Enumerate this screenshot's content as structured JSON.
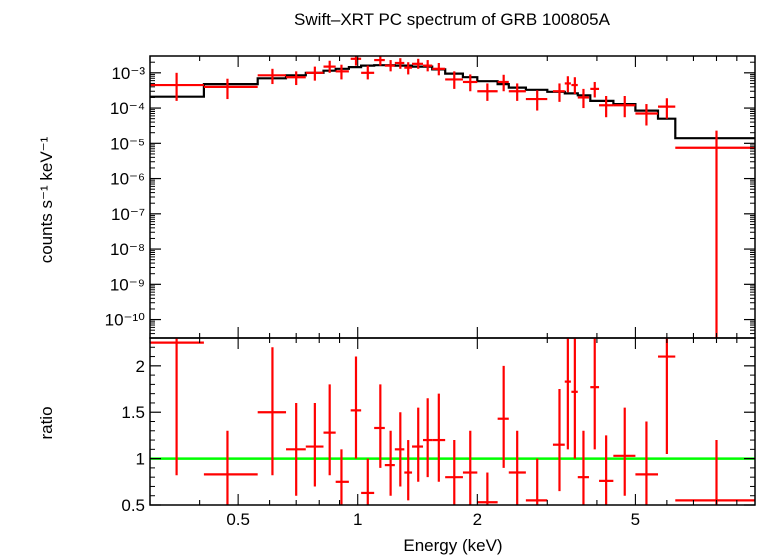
{
  "chart_data": {
    "type": "scatter",
    "title": "Swift–XRT PC spectrum of GRB 100805A",
    "xlabel": "Energy (keV)",
    "x_scale": "log",
    "xlim": [
      0.3,
      10
    ],
    "x_ticks": [
      {
        "value": 0.5,
        "label": "0.5"
      },
      {
        "value": 1,
        "label": "1"
      },
      {
        "value": 2,
        "label": "2"
      },
      {
        "value": 5,
        "label": "5"
      }
    ],
    "colors": {
      "data": "#ff0000",
      "model": "#000000",
      "unity": "#00ff00",
      "axes": "#000000"
    },
    "panels": [
      {
        "name": "spectrum",
        "ylabel": "counts s⁻¹ keV⁻¹",
        "y_scale": "log",
        "ylim": [
          3e-11,
          0.003
        ],
        "y_ticks": [
          {
            "value": 0.001,
            "label": "10⁻³"
          },
          {
            "value": 0.0001,
            "label": "10⁻⁴"
          },
          {
            "value": 1e-05,
            "label": "10⁻⁵"
          },
          {
            "value": 1e-06,
            "label": "10⁻⁶"
          },
          {
            "value": 1e-07,
            "label": "10⁻⁷"
          },
          {
            "value": 1e-08,
            "label": "10⁻⁸"
          },
          {
            "value": 1e-09,
            "label": "10⁻⁹"
          },
          {
            "value": 1e-10,
            "label": "10⁻¹⁰"
          }
        ],
        "data_points": [
          {
            "x": 0.35,
            "xlo": 0.3,
            "xhi": 0.41,
            "y": 0.00045,
            "ylo": 0.00016,
            "yhi": 0.001
          },
          {
            "x": 0.47,
            "xlo": 0.41,
            "xhi": 0.56,
            "y": 0.0004,
            "ylo": 0.00018,
            "yhi": 0.00068
          },
          {
            "x": 0.61,
            "xlo": 0.56,
            "xhi": 0.66,
            "y": 0.00085,
            "ylo": 0.00048,
            "yhi": 0.0013
          },
          {
            "x": 0.7,
            "xlo": 0.66,
            "xhi": 0.74,
            "y": 0.00075,
            "ylo": 0.00045,
            "yhi": 0.0011
          },
          {
            "x": 0.78,
            "xlo": 0.74,
            "xhi": 0.82,
            "y": 0.001,
            "ylo": 0.0006,
            "yhi": 0.0015
          },
          {
            "x": 0.85,
            "xlo": 0.82,
            "xhi": 0.88,
            "y": 0.0015,
            "ylo": 0.001,
            "yhi": 0.0022
          },
          {
            "x": 0.91,
            "xlo": 0.88,
            "xhi": 0.95,
            "y": 0.0011,
            "ylo": 0.00065,
            "yhi": 0.0017
          },
          {
            "x": 0.99,
            "xlo": 0.96,
            "xhi": 1.02,
            "y": 0.0025,
            "ylo": 0.0016,
            "yhi": 0.0032
          },
          {
            "x": 1.06,
            "xlo": 1.02,
            "xhi": 1.1,
            "y": 0.001,
            "ylo": 0.00065,
            "yhi": 0.0016
          },
          {
            "x": 1.14,
            "xlo": 1.1,
            "xhi": 1.17,
            "y": 0.0023,
            "ylo": 0.0016,
            "yhi": 0.003
          },
          {
            "x": 1.21,
            "xlo": 1.17,
            "xhi": 1.24,
            "y": 0.0016,
            "ylo": 0.0011,
            "yhi": 0.0023
          },
          {
            "x": 1.28,
            "xlo": 1.24,
            "xhi": 1.31,
            "y": 0.0019,
            "ylo": 0.0013,
            "yhi": 0.0026
          },
          {
            "x": 1.34,
            "xlo": 1.31,
            "xhi": 1.37,
            "y": 0.0014,
            "ylo": 0.0009,
            "yhi": 0.002
          },
          {
            "x": 1.42,
            "xlo": 1.37,
            "xhi": 1.46,
            "y": 0.0018,
            "ylo": 0.0013,
            "yhi": 0.0025
          },
          {
            "x": 1.5,
            "xlo": 1.46,
            "xhi": 1.54,
            "y": 0.0016,
            "ylo": 0.0011,
            "yhi": 0.0023
          },
          {
            "x": 1.6,
            "xlo": 1.54,
            "xhi": 1.66,
            "y": 0.0013,
            "ylo": 0.00085,
            "yhi": 0.0019
          },
          {
            "x": 1.75,
            "xlo": 1.66,
            "xhi": 1.84,
            "y": 0.00065,
            "ylo": 0.00035,
            "yhi": 0.0011
          },
          {
            "x": 1.92,
            "xlo": 1.84,
            "xhi": 2.0,
            "y": 0.00055,
            "ylo": 0.0003,
            "yhi": 0.0009
          },
          {
            "x": 2.12,
            "xlo": 2.0,
            "xhi": 2.25,
            "y": 0.0003,
            "ylo": 0.00016,
            "yhi": 0.0005
          },
          {
            "x": 2.33,
            "xlo": 2.25,
            "xhi": 2.4,
            "y": 0.00055,
            "ylo": 0.0003,
            "yhi": 0.00088
          },
          {
            "x": 2.52,
            "xlo": 2.4,
            "xhi": 2.65,
            "y": 0.0003,
            "ylo": 0.00016,
            "yhi": 0.0005
          },
          {
            "x": 2.83,
            "xlo": 2.65,
            "xhi": 3.0,
            "y": 0.00018,
            "ylo": 8.5e-05,
            "yhi": 0.00032
          },
          {
            "x": 3.22,
            "xlo": 3.1,
            "xhi": 3.32,
            "y": 0.0003,
            "ylo": 0.00015,
            "yhi": 0.0005
          },
          {
            "x": 3.38,
            "xlo": 3.32,
            "xhi": 3.44,
            "y": 0.0005,
            "ylo": 0.00028,
            "yhi": 0.0008
          },
          {
            "x": 3.52,
            "xlo": 3.45,
            "xhi": 3.58,
            "y": 0.00045,
            "ylo": 0.00025,
            "yhi": 0.00075
          },
          {
            "x": 3.7,
            "xlo": 3.58,
            "xhi": 3.82,
            "y": 0.0002,
            "ylo": 0.0001,
            "yhi": 0.00035
          },
          {
            "x": 3.95,
            "xlo": 3.85,
            "xhi": 4.05,
            "y": 0.00035,
            "ylo": 0.0002,
            "yhi": 0.00055
          },
          {
            "x": 4.22,
            "xlo": 4.05,
            "xhi": 4.4,
            "y": 0.00012,
            "ylo": 5.5e-05,
            "yhi": 0.00022
          },
          {
            "x": 4.7,
            "xlo": 4.4,
            "xhi": 5.0,
            "y": 0.00012,
            "ylo": 5.5e-05,
            "yhi": 0.00022
          },
          {
            "x": 5.33,
            "xlo": 5.0,
            "xhi": 5.7,
            "y": 7e-05,
            "ylo": 3.2e-05,
            "yhi": 0.00013
          },
          {
            "x": 6.0,
            "xlo": 5.7,
            "xhi": 6.3,
            "y": 0.00011,
            "ylo": 5e-05,
            "yhi": 0.00019
          },
          {
            "x": 8.0,
            "xlo": 6.3,
            "xhi": 10.0,
            "y": 7.5e-06,
            "ylo": 3e-11,
            "yhi": 2.3e-05
          }
        ],
        "model_steps": [
          {
            "xlo": 0.3,
            "xhi": 0.41,
            "y": 0.00021
          },
          {
            "xlo": 0.41,
            "xhi": 0.56,
            "y": 0.00048
          },
          {
            "xlo": 0.56,
            "xhi": 0.66,
            "y": 0.0007
          },
          {
            "xlo": 0.66,
            "xhi": 0.74,
            "y": 0.00085
          },
          {
            "xlo": 0.74,
            "xhi": 0.82,
            "y": 0.001
          },
          {
            "xlo": 0.82,
            "xhi": 0.88,
            "y": 0.00115
          },
          {
            "xlo": 0.88,
            "xhi": 0.95,
            "y": 0.0013
          },
          {
            "xlo": 0.95,
            "xhi": 1.02,
            "y": 0.00145
          },
          {
            "xlo": 1.02,
            "xhi": 1.1,
            "y": 0.0016
          },
          {
            "xlo": 1.1,
            "xhi": 1.24,
            "y": 0.00165
          },
          {
            "xlo": 1.24,
            "xhi": 1.37,
            "y": 0.0016
          },
          {
            "xlo": 1.37,
            "xhi": 1.54,
            "y": 0.0015
          },
          {
            "xlo": 1.54,
            "xhi": 1.66,
            "y": 0.00125
          },
          {
            "xlo": 1.66,
            "xhi": 1.84,
            "y": 0.00095
          },
          {
            "xlo": 1.84,
            "xhi": 2.0,
            "y": 0.00075
          },
          {
            "xlo": 2.0,
            "xhi": 2.25,
            "y": 0.00058
          },
          {
            "xlo": 2.25,
            "xhi": 2.4,
            "y": 0.00048
          },
          {
            "xlo": 2.4,
            "xhi": 2.65,
            "y": 0.00038
          },
          {
            "xlo": 2.65,
            "xhi": 3.0,
            "y": 0.00033
          },
          {
            "xlo": 3.0,
            "xhi": 3.32,
            "y": 0.00029
          },
          {
            "xlo": 3.32,
            "xhi": 3.58,
            "y": 0.00026
          },
          {
            "xlo": 3.58,
            "xhi": 3.85,
            "y": 0.00023
          },
          {
            "xlo": 3.85,
            "xhi": 4.4,
            "y": 0.00016
          },
          {
            "xlo": 4.4,
            "xhi": 5.0,
            "y": 0.00013
          },
          {
            "xlo": 5.0,
            "xhi": 5.7,
            "y": 8.5e-05
          },
          {
            "xlo": 5.7,
            "xhi": 6.3,
            "y": 5e-05
          },
          {
            "xlo": 6.3,
            "xhi": 10.0,
            "y": 1.4e-05
          }
        ]
      },
      {
        "name": "ratio",
        "ylabel": "ratio",
        "y_scale": "linear",
        "ylim": [
          0.5,
          2.3
        ],
        "unity_line": 1,
        "y_ticks": [
          {
            "value": 0.5,
            "label": "0.5"
          },
          {
            "value": 1,
            "label": "1"
          },
          {
            "value": 1.5,
            "label": "1.5"
          },
          {
            "value": 2,
            "label": "2"
          }
        ],
        "data_points": [
          {
            "x": 0.35,
            "xlo": 0.3,
            "xhi": 0.41,
            "y": 2.25,
            "ylo": 0.82,
            "yhi": 2.3
          },
          {
            "x": 0.47,
            "xlo": 0.41,
            "xhi": 0.56,
            "y": 0.83,
            "ylo": 0.5,
            "yhi": 1.3
          },
          {
            "x": 0.61,
            "xlo": 0.56,
            "xhi": 0.66,
            "y": 1.5,
            "ylo": 0.82,
            "yhi": 2.2
          },
          {
            "x": 0.7,
            "xlo": 0.66,
            "xhi": 0.74,
            "y": 1.1,
            "ylo": 0.6,
            "yhi": 1.6
          },
          {
            "x": 0.78,
            "xlo": 0.74,
            "xhi": 0.82,
            "y": 1.13,
            "ylo": 0.7,
            "yhi": 1.6
          },
          {
            "x": 0.85,
            "xlo": 0.82,
            "xhi": 0.88,
            "y": 1.28,
            "ylo": 0.82,
            "yhi": 1.8
          },
          {
            "x": 0.91,
            "xlo": 0.88,
            "xhi": 0.95,
            "y": 0.75,
            "ylo": 0.5,
            "yhi": 1.1
          },
          {
            "x": 0.99,
            "xlo": 0.96,
            "xhi": 1.02,
            "y": 1.52,
            "ylo": 1.0,
            "yhi": 2.1
          },
          {
            "x": 1.06,
            "xlo": 1.02,
            "xhi": 1.1,
            "y": 0.63,
            "ylo": 0.5,
            "yhi": 1.0
          },
          {
            "x": 1.14,
            "xlo": 1.1,
            "xhi": 1.17,
            "y": 1.33,
            "ylo": 0.9,
            "yhi": 1.8
          },
          {
            "x": 1.21,
            "xlo": 1.17,
            "xhi": 1.24,
            "y": 0.93,
            "ylo": 0.6,
            "yhi": 1.3
          },
          {
            "x": 1.28,
            "xlo": 1.24,
            "xhi": 1.31,
            "y": 1.1,
            "ylo": 0.7,
            "yhi": 1.5
          },
          {
            "x": 1.34,
            "xlo": 1.31,
            "xhi": 1.37,
            "y": 0.85,
            "ylo": 0.55,
            "yhi": 1.2
          },
          {
            "x": 1.42,
            "xlo": 1.37,
            "xhi": 1.46,
            "y": 1.13,
            "ylo": 0.75,
            "yhi": 1.55
          },
          {
            "x": 1.5,
            "xlo": 1.46,
            "xhi": 1.54,
            "y": 1.2,
            "ylo": 0.8,
            "yhi": 1.65
          },
          {
            "x": 1.6,
            "xlo": 1.54,
            "xhi": 1.66,
            "y": 1.2,
            "ylo": 0.75,
            "yhi": 1.7
          },
          {
            "x": 1.75,
            "xlo": 1.66,
            "xhi": 1.84,
            "y": 0.8,
            "ylo": 0.5,
            "yhi": 1.2
          },
          {
            "x": 1.92,
            "xlo": 1.84,
            "xhi": 2.0,
            "y": 0.85,
            "ylo": 0.5,
            "yhi": 1.3
          },
          {
            "x": 2.12,
            "xlo": 2.0,
            "xhi": 2.25,
            "y": 0.53,
            "ylo": 0.5,
            "yhi": 0.85
          },
          {
            "x": 2.33,
            "xlo": 2.25,
            "xhi": 2.4,
            "y": 1.43,
            "ylo": 0.9,
            "yhi": 2.0
          },
          {
            "x": 2.52,
            "xlo": 2.4,
            "xhi": 2.65,
            "y": 0.85,
            "ylo": 0.5,
            "yhi": 1.3
          },
          {
            "x": 2.83,
            "xlo": 2.65,
            "xhi": 3.0,
            "y": 0.55,
            "ylo": 0.5,
            "yhi": 1.0
          },
          {
            "x": 3.22,
            "xlo": 3.1,
            "xhi": 3.32,
            "y": 1.15,
            "ylo": 0.65,
            "yhi": 1.75
          },
          {
            "x": 3.38,
            "xlo": 3.32,
            "xhi": 3.44,
            "y": 1.83,
            "ylo": 1.1,
            "yhi": 2.3
          },
          {
            "x": 3.52,
            "xlo": 3.45,
            "xhi": 3.58,
            "y": 1.72,
            "ylo": 1.0,
            "yhi": 2.3
          },
          {
            "x": 3.7,
            "xlo": 3.58,
            "xhi": 3.82,
            "y": 0.8,
            "ylo": 0.5,
            "yhi": 1.3
          },
          {
            "x": 3.95,
            "xlo": 3.85,
            "xhi": 4.05,
            "y": 1.77,
            "ylo": 1.1,
            "yhi": 2.3
          },
          {
            "x": 4.22,
            "xlo": 4.05,
            "xhi": 4.4,
            "y": 0.76,
            "ylo": 0.5,
            "yhi": 1.25
          },
          {
            "x": 4.7,
            "xlo": 4.4,
            "xhi": 5.0,
            "y": 1.03,
            "ylo": 0.6,
            "yhi": 1.55
          },
          {
            "x": 5.33,
            "xlo": 5.0,
            "xhi": 5.7,
            "y": 0.83,
            "ylo": 0.5,
            "yhi": 1.4
          },
          {
            "x": 6.0,
            "xlo": 5.7,
            "xhi": 6.3,
            "y": 2.1,
            "ylo": 1.05,
            "yhi": 2.3
          },
          {
            "x": 8.0,
            "xlo": 6.3,
            "xhi": 10.0,
            "y": 0.55,
            "ylo": 0.5,
            "yhi": 1.2
          }
        ]
      }
    ]
  }
}
